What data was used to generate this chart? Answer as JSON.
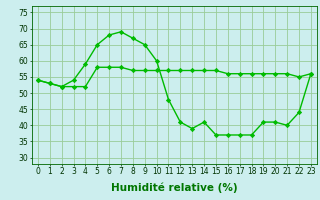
{
  "line1_x": [
    0,
    1,
    2,
    3,
    4,
    5,
    6,
    7,
    8,
    9,
    10,
    11,
    12,
    13,
    14,
    15,
    16,
    17,
    18,
    19,
    20,
    21,
    22,
    23
  ],
  "line1_y": [
    54,
    53,
    52,
    54,
    59,
    65,
    68,
    69,
    67,
    65,
    60,
    48,
    41,
    39,
    41,
    37,
    37,
    37,
    37,
    41,
    41,
    40,
    44,
    56
  ],
  "line2_x": [
    0,
    1,
    2,
    3,
    4,
    5,
    6,
    7,
    8,
    9,
    10,
    11,
    12,
    13,
    14,
    15,
    16,
    17,
    18,
    19,
    20,
    21,
    22,
    23
  ],
  "line2_y": [
    54,
    53,
    52,
    52,
    52,
    58,
    58,
    58,
    57,
    57,
    57,
    57,
    57,
    57,
    57,
    57,
    56,
    56,
    56,
    56,
    56,
    56,
    55,
    56
  ],
  "line_color": "#00bb00",
  "bg_color": "#cceeee",
  "grid_color": "#99cc99",
  "xlabel": "Humidité relative (%)",
  "xlim": [
    -0.5,
    23.5
  ],
  "ylim": [
    28,
    77
  ],
  "yticks": [
    30,
    35,
    40,
    45,
    50,
    55,
    60,
    65,
    70,
    75
  ],
  "xticks": [
    0,
    1,
    2,
    3,
    4,
    5,
    6,
    7,
    8,
    9,
    10,
    11,
    12,
    13,
    14,
    15,
    16,
    17,
    18,
    19,
    20,
    21,
    22,
    23
  ],
  "marker": "D",
  "marker_size": 2.2,
  "line_width": 1.0,
  "xlabel_color": "#007700",
  "xlabel_fontsize": 7.5,
  "tick_fontsize": 5.5,
  "tick_color": "#003300"
}
